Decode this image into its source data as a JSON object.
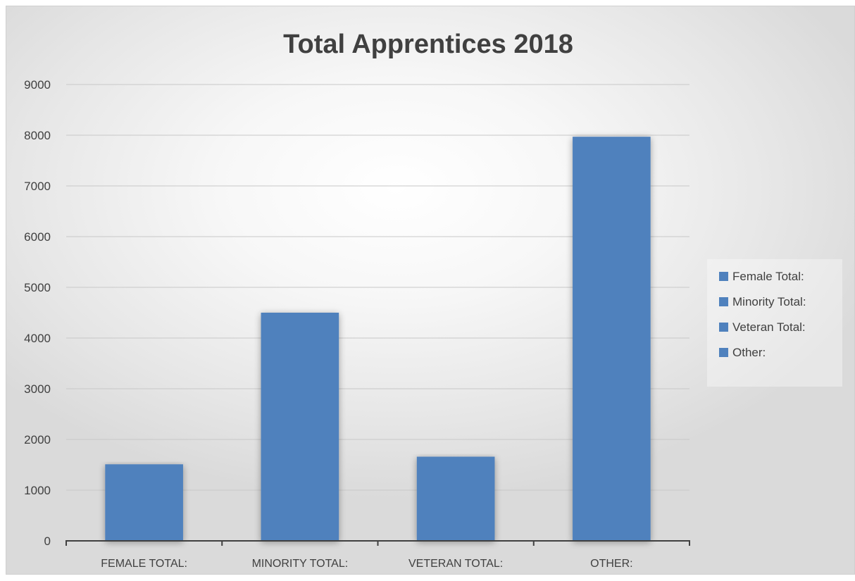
{
  "chart_data": {
    "type": "bar",
    "title": "Total Apprentices 2018",
    "xlabel": "",
    "ylabel": "",
    "categories": [
      "FEMALE TOTAL:",
      "MINORITY TOTAL:",
      "VETERAN TOTAL:",
      "OTHER:"
    ],
    "series": [
      {
        "values": [
          1510,
          4500,
          1660,
          7970
        ]
      }
    ],
    "ylim": [
      0,
      9000
    ],
    "yticks": [
      0,
      1000,
      2000,
      3000,
      4000,
      5000,
      6000,
      7000,
      8000,
      9000
    ],
    "grid": true,
    "legend": {
      "position": "right",
      "entries": [
        "Female Total:",
        "Minority Total:",
        "Veteran Total:",
        "Other:"
      ]
    },
    "colors": {
      "bar": "#4f81bd",
      "grid": "#c8c8c8",
      "axis": "#404040",
      "text": "#404040"
    }
  }
}
